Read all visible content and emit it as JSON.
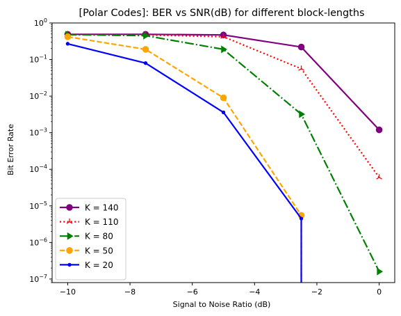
{
  "chart_data": {
    "type": "line",
    "title": "[Polar Codes]: BER vs SNR(dB) for different block-lengths",
    "xlabel": "Signal to Noise Ratio (dB)",
    "ylabel": "Bit Error Rate",
    "xlim": [
      -10.5,
      0.5
    ],
    "ylim": [
      8e-08,
      1.0
    ],
    "yscale": "log",
    "x_ticks": [
      -10,
      -8,
      -6,
      -4,
      -2,
      0
    ],
    "x_tick_labels": [
      "−10",
      "−8",
      "−6",
      "−4",
      "−2",
      "0"
    ],
    "y_tick_exponents": [
      "0",
      "−1",
      "−2",
      "−3",
      "−4",
      "−5",
      "−6",
      "−7"
    ],
    "y_tick_base": "10",
    "grid": false,
    "legend_position": "bottom-left",
    "x": [
      -10,
      -7.5,
      -5,
      -2.5,
      0
    ],
    "series": [
      {
        "name": "K = 140",
        "color": "#800080",
        "linestyle": "solid",
        "marker": "circle",
        "values": [
          0.49,
          0.49,
          0.47,
          0.22,
          0.0012
        ]
      },
      {
        "name": "K = 110",
        "color": "#ff0000",
        "linestyle": "dotted",
        "marker": "tri_up",
        "values": [
          0.48,
          0.47,
          0.42,
          0.056,
          6e-05
        ]
      },
      {
        "name": "K = 80",
        "color": "#008000",
        "linestyle": "dashdot",
        "marker": "triangle_right",
        "values": [
          0.48,
          0.45,
          0.19,
          0.0032,
          1.6e-07
        ]
      },
      {
        "name": "K = 50",
        "color": "#ffa500",
        "linestyle": "dashed",
        "marker": "circle",
        "values": [
          0.42,
          0.19,
          0.009,
          5.5e-06,
          null
        ]
      },
      {
        "name": "K = 20",
        "color": "#0000ff",
        "linestyle": "solid",
        "marker": "point",
        "values": [
          0.27,
          0.08,
          0.0036,
          4.5e-06,
          null
        ]
      }
    ]
  }
}
